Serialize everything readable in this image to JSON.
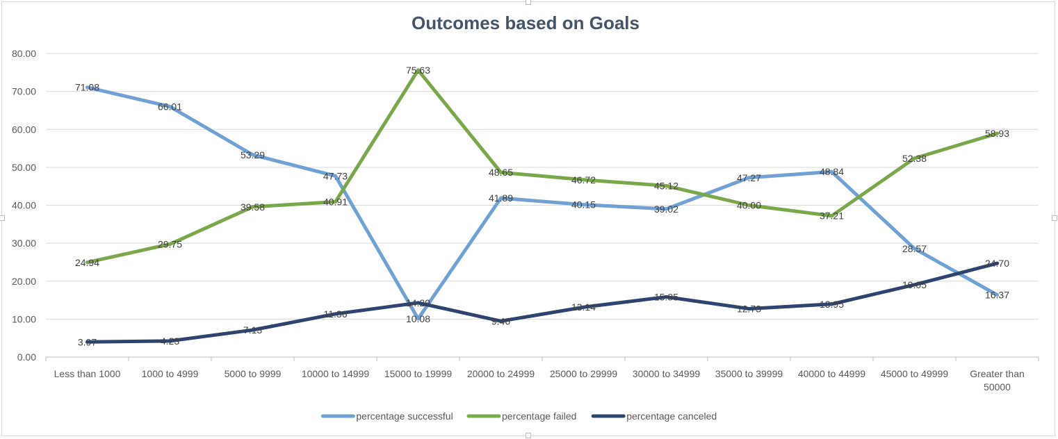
{
  "chart_data": {
    "type": "line",
    "title": "Outcomes based on Goals",
    "xlabel": "",
    "ylabel": "",
    "ylim": [
      0,
      80
    ],
    "y_ticks": [
      "0.00",
      "10.00",
      "20.00",
      "30.00",
      "40.00",
      "50.00",
      "60.00",
      "70.00",
      "80.00"
    ],
    "grid": true,
    "legend_position": "bottom",
    "categories": [
      [
        "Less than 1000"
      ],
      [
        "1000 to 4999"
      ],
      [
        "5000 to 9999"
      ],
      [
        "10000 to 14999"
      ],
      [
        "15000 to 19999"
      ],
      [
        "20000 to 24999"
      ],
      [
        "25000 to 29999"
      ],
      [
        "30000 to 34999"
      ],
      [
        "35000 to 39999"
      ],
      [
        "40000 to 44999"
      ],
      [
        "45000 to 49999"
      ],
      [
        "Greater than",
        "50000"
      ]
    ],
    "series": [
      {
        "name": "percentage successful",
        "color": "#6fa1d4",
        "values": [
          71.08,
          66.01,
          53.29,
          47.73,
          10.08,
          41.89,
          40.15,
          39.02,
          47.27,
          48.84,
          28.57,
          16.37
        ],
        "labels": [
          "71.08",
          "66.01",
          "53.29",
          "47.73",
          "10.08",
          "41.89",
          "40.15",
          "39.02",
          "47.27",
          "48.84",
          "28.57",
          "16.37"
        ]
      },
      {
        "name": "percentage failed",
        "color": "#79a84b",
        "values": [
          24.94,
          29.75,
          39.58,
          40.91,
          75.63,
          48.65,
          46.72,
          45.12,
          40.0,
          37.21,
          52.38,
          58.93
        ],
        "labels": [
          "24.94",
          "29.75",
          "39.58",
          "40.91",
          "75.63",
          "48.65",
          "46.72",
          "45.12",
          "40.00",
          "37.21",
          "52.38",
          "58.93"
        ]
      },
      {
        "name": "percentage canceled",
        "color": "#2d4470",
        "values": [
          3.97,
          4.23,
          7.13,
          11.36,
          14.29,
          9.46,
          13.14,
          15.85,
          12.73,
          13.95,
          19.05,
          24.7
        ],
        "labels": [
          "3.97",
          "4.23",
          "7.13",
          "11.36",
          "14.29",
          "9.46",
          "13.14",
          "15.85",
          "12.73",
          "13.95",
          "19.05",
          "24.70"
        ]
      }
    ]
  }
}
